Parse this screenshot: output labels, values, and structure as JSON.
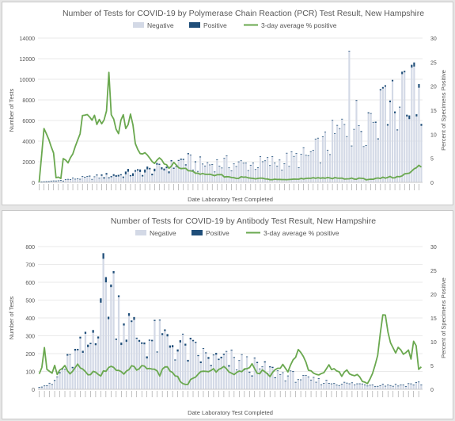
{
  "colors": {
    "negative": "#d3d9e6",
    "positive": "#1f4e79",
    "line": "#6aa84f",
    "grid": "#e3e3e3",
    "axis_text": "#555555"
  },
  "legend": {
    "negative": "Negative",
    "positive": "Positive",
    "line": "3-day average % positive"
  },
  "chart_data": [
    {
      "type": "bar",
      "title": "Number of Tests for COVID-19 by Polymerase Chain Reaction (PCR) Test Result, New Hampshire",
      "xlabel": "Date Laboratory Test Completed",
      "ylabel": "Number of Tests",
      "y2label": "Percent of Specimens Positive",
      "stacked": true,
      "ylim": [
        0,
        14000
      ],
      "yticks": [
        0,
        2000,
        4000,
        6000,
        8000,
        10000,
        12000,
        14000
      ],
      "y2lim": [
        0,
        30
      ],
      "y2ticks": [
        0,
        5,
        10,
        15,
        20,
        25,
        30
      ],
      "grid": true,
      "legend_position": "top",
      "n_days": 160,
      "anchors": {
        "negative": [
          [
            0,
            0
          ],
          [
            8,
            150
          ],
          [
            15,
            400
          ],
          [
            25,
            600
          ],
          [
            35,
            800
          ],
          [
            45,
            1200
          ],
          [
            50,
            1500
          ],
          [
            55,
            1800
          ],
          [
            60,
            2600
          ],
          [
            65,
            2000
          ],
          [
            75,
            2200
          ],
          [
            85,
            2000
          ],
          [
            95,
            2200
          ],
          [
            105,
            2600
          ],
          [
            112,
            3000
          ],
          [
            120,
            4500
          ],
          [
            128,
            6500
          ],
          [
            135,
            7500
          ],
          [
            142,
            8500
          ],
          [
            148,
            9500
          ],
          [
            154,
            10500
          ],
          [
            159,
            11000
          ]
        ],
        "positive": [
          [
            0,
            0
          ],
          [
            15,
            20
          ],
          [
            25,
            90
          ],
          [
            35,
            180
          ],
          [
            45,
            200
          ],
          [
            55,
            120
          ],
          [
            65,
            70
          ],
          [
            80,
            30
          ],
          [
            100,
            25
          ],
          [
            130,
            50
          ],
          [
            150,
            150
          ],
          [
            159,
            350
          ]
        ],
        "line": [
          [
            0,
            0
          ],
          [
            2,
            11
          ],
          [
            4,
            9
          ],
          [
            6,
            6
          ],
          [
            7,
            1
          ],
          [
            9,
            1
          ],
          [
            10,
            5
          ],
          [
            12,
            4
          ],
          [
            14,
            6
          ],
          [
            17,
            10
          ],
          [
            18,
            14
          ],
          [
            20,
            14
          ],
          [
            22,
            13
          ],
          [
            23,
            14
          ],
          [
            24,
            12
          ],
          [
            25,
            13
          ],
          [
            26,
            12
          ],
          [
            27,
            13
          ],
          [
            28,
            15
          ],
          [
            29,
            23
          ],
          [
            30,
            14
          ],
          [
            31,
            13
          ],
          [
            32,
            11
          ],
          [
            33,
            10
          ],
          [
            34,
            13
          ],
          [
            35,
            14
          ],
          [
            36,
            11
          ],
          [
            37,
            12
          ],
          [
            38,
            14
          ],
          [
            39,
            12
          ],
          [
            40,
            8
          ],
          [
            42,
            6
          ],
          [
            44,
            6
          ],
          [
            46,
            5
          ],
          [
            48,
            4
          ],
          [
            50,
            5
          ],
          [
            52,
            4
          ],
          [
            54,
            3
          ],
          [
            56,
            4
          ],
          [
            58,
            3
          ],
          [
            60,
            3
          ],
          [
            62,
            2.5
          ],
          [
            65,
            2
          ],
          [
            70,
            1.5
          ],
          [
            75,
            1.5
          ],
          [
            80,
            1
          ],
          [
            85,
            1
          ],
          [
            90,
            0.8
          ],
          [
            95,
            0.7
          ],
          [
            100,
            0.8
          ],
          [
            105,
            0.6
          ],
          [
            110,
            0.7
          ],
          [
            115,
            0.8
          ],
          [
            120,
            1
          ],
          [
            125,
            0.9
          ],
          [
            130,
            0.7
          ],
          [
            135,
            0.7
          ],
          [
            140,
            0.8
          ],
          [
            145,
            1
          ],
          [
            150,
            1.2
          ],
          [
            154,
            2
          ],
          [
            156,
            3
          ],
          [
            158,
            3.5
          ],
          [
            159,
            3
          ]
        ]
      },
      "x_tick_labels": []
    },
    {
      "type": "bar",
      "title": "Number of Tests for COVID-19 by Antibody Test Result, New Hampshire",
      "xlabel": "Date Laboratory Test Completed",
      "ylabel": "Number of Tests",
      "y2label": "Percent of Specimens Positive",
      "stacked": true,
      "ylim": [
        0,
        800
      ],
      "yticks": [
        0,
        100,
        200,
        300,
        400,
        500,
        600,
        700,
        800
      ],
      "y2lim": [
        0,
        30
      ],
      "y2ticks": [
        0,
        5,
        10,
        15,
        20,
        25,
        30
      ],
      "grid": true,
      "legend_position": "top",
      "n_days": 150,
      "anchors": {
        "negative": [
          [
            0,
            20
          ],
          [
            5,
            30
          ],
          [
            10,
            150
          ],
          [
            15,
            230
          ],
          [
            20,
            300
          ],
          [
            24,
            640
          ],
          [
            27,
            700
          ],
          [
            30,
            600
          ],
          [
            33,
            480
          ],
          [
            36,
            380
          ],
          [
            40,
            330
          ],
          [
            45,
            330
          ],
          [
            50,
            320
          ],
          [
            55,
            280
          ],
          [
            60,
            240
          ],
          [
            65,
            210
          ],
          [
            70,
            180
          ],
          [
            75,
            190
          ],
          [
            80,
            170
          ],
          [
            85,
            140
          ],
          [
            90,
            120
          ],
          [
            95,
            100
          ],
          [
            100,
            80
          ],
          [
            105,
            60
          ],
          [
            110,
            50
          ],
          [
            115,
            40
          ],
          [
            120,
            35
          ],
          [
            130,
            30
          ],
          [
            140,
            25
          ],
          [
            149,
            40
          ]
        ],
        "positive": [
          [
            0,
            1
          ],
          [
            20,
            10
          ],
          [
            25,
            25
          ],
          [
            30,
            14
          ],
          [
            40,
            10
          ],
          [
            50,
            10
          ],
          [
            60,
            8
          ],
          [
            75,
            6
          ],
          [
            90,
            4
          ],
          [
            110,
            2
          ],
          [
            130,
            2
          ],
          [
            149,
            2
          ]
        ],
        "line": [
          [
            0,
            3
          ],
          [
            1,
            5
          ],
          [
            2,
            9
          ],
          [
            3,
            4
          ],
          [
            5,
            3
          ],
          [
            6,
            5
          ],
          [
            7,
            3
          ],
          [
            10,
            5
          ],
          [
            12,
            3
          ],
          [
            15,
            5
          ],
          [
            17,
            4
          ],
          [
            19,
            3
          ],
          [
            22,
            4
          ],
          [
            24,
            3
          ],
          [
            26,
            4
          ],
          [
            28,
            5
          ],
          [
            30,
            4
          ],
          [
            33,
            3
          ],
          [
            36,
            5
          ],
          [
            38,
            4
          ],
          [
            40,
            5
          ],
          [
            42,
            4
          ],
          [
            45,
            4
          ],
          [
            47,
            3
          ],
          [
            49,
            5
          ],
          [
            51,
            4
          ],
          [
            55,
            2
          ],
          [
            57,
            1
          ],
          [
            60,
            2
          ],
          [
            62,
            3
          ],
          [
            65,
            4
          ],
          [
            68,
            4
          ],
          [
            70,
            4
          ],
          [
            72,
            5
          ],
          [
            75,
            3
          ],
          [
            78,
            4
          ],
          [
            80,
            4
          ],
          [
            83,
            5
          ],
          [
            85,
            3
          ],
          [
            88,
            4
          ],
          [
            90,
            3
          ],
          [
            92,
            4
          ],
          [
            95,
            5
          ],
          [
            97,
            4
          ],
          [
            99,
            6
          ],
          [
            101,
            8
          ],
          [
            103,
            7
          ],
          [
            105,
            4
          ],
          [
            107,
            3
          ],
          [
            110,
            3
          ],
          [
            113,
            5
          ],
          [
            115,
            4
          ],
          [
            118,
            3
          ],
          [
            120,
            4
          ],
          [
            122,
            3
          ],
          [
            124,
            3
          ],
          [
            126,
            2
          ],
          [
            128,
            1
          ],
          [
            130,
            3
          ],
          [
            132,
            7
          ],
          [
            134,
            16
          ],
          [
            135,
            16
          ],
          [
            136,
            12
          ],
          [
            137,
            10
          ],
          [
            139,
            8
          ],
          [
            140,
            9
          ],
          [
            142,
            7
          ],
          [
            144,
            8
          ],
          [
            145,
            6
          ],
          [
            146,
            10
          ],
          [
            147,
            9
          ],
          [
            148,
            4
          ],
          [
            149,
            5
          ]
        ]
      },
      "x_tick_labels": []
    }
  ]
}
